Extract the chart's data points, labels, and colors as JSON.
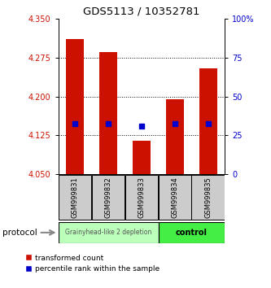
{
  "title": "GDS5113 / 10352781",
  "samples": [
    "GSM999831",
    "GSM999832",
    "GSM999833",
    "GSM999834",
    "GSM999835"
  ],
  "bar_tops": [
    4.31,
    4.285,
    4.115,
    4.195,
    4.255
  ],
  "bar_bottoms": [
    4.05,
    4.05,
    4.05,
    4.05,
    4.05
  ],
  "percentile_values": [
    4.148,
    4.148,
    4.143,
    4.148,
    4.148
  ],
  "ylim": [
    4.05,
    4.35
  ],
  "y_ticks_left": [
    4.05,
    4.125,
    4.2,
    4.275,
    4.35
  ],
  "y_ticks_right_vals": [
    0,
    25,
    50,
    75,
    100
  ],
  "y_ticks_right_labels": [
    "0",
    "25",
    "50",
    "75",
    "100%"
  ],
  "bar_color": "#cc1100",
  "percentile_color": "#0000cc",
  "group1_label": "Grainyhead-like 2 depletion",
  "group2_label": "control",
  "group1_color": "#bbffbb",
  "group2_color": "#44ee44",
  "protocol_label": "protocol",
  "legend_red_label": "transformed count",
  "legend_blue_label": "percentile rank within the sample",
  "bar_width": 0.55,
  "ylabel_fontsize": 7,
  "title_fontsize": 9.5,
  "tick_label_color_left": "#cc1100",
  "tick_label_color_right": "#0000cc"
}
